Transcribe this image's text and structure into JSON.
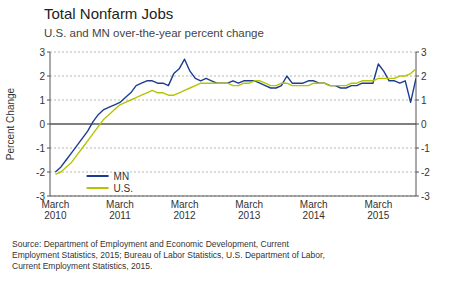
{
  "chart_data": {
    "type": "line",
    "title": "Total Nonfarm Jobs",
    "subtitle": "U.S. and MN over-the-year percent change",
    "y_label": "Percent Change",
    "source": "Source: Department of Employment and Economic Development, Current\nEmployment Statistics, 2015; Bureau of Labor Statistics, U.S. Department of Labor,\nCurrent Employment Statistics, 2015.",
    "categories": [
      "March\n2010",
      null,
      null,
      null,
      null,
      null,
      null,
      null,
      null,
      null,
      null,
      null,
      "March\n2011",
      null,
      null,
      null,
      null,
      null,
      null,
      null,
      null,
      null,
      null,
      null,
      "March\n2012",
      null,
      null,
      null,
      null,
      null,
      null,
      null,
      null,
      null,
      null,
      null,
      "March\n2013",
      null,
      null,
      null,
      null,
      null,
      null,
      null,
      null,
      null,
      null,
      null,
      "March\n2014",
      null,
      null,
      null,
      null,
      null,
      null,
      null,
      null,
      null,
      null,
      null,
      "March\n2015",
      null,
      null,
      null,
      null,
      null,
      null,
      null
    ],
    "series": [
      {
        "name": "MN",
        "color": "#1a3d8f",
        "values": [
          -2.0,
          -1.8,
          -1.5,
          -1.2,
          -0.9,
          -0.6,
          -0.3,
          0.1,
          0.4,
          0.6,
          0.7,
          0.8,
          0.9,
          1.1,
          1.3,
          1.6,
          1.7,
          1.8,
          1.8,
          1.7,
          1.7,
          1.6,
          2.1,
          2.3,
          2.7,
          2.2,
          1.9,
          1.8,
          1.9,
          1.8,
          1.7,
          1.7,
          1.7,
          1.8,
          1.7,
          1.8,
          1.8,
          1.8,
          1.7,
          1.6,
          1.5,
          1.5,
          1.6,
          2.0,
          1.7,
          1.7,
          1.7,
          1.8,
          1.8,
          1.7,
          1.7,
          1.6,
          1.6,
          1.5,
          1.5,
          1.6,
          1.6,
          1.7,
          1.7,
          1.7,
          2.5,
          2.2,
          1.8,
          1.8,
          1.7,
          1.8,
          0.9,
          1.9
        ]
      },
      {
        "name": "U.S.",
        "color": "#b5c400",
        "values": [
          -2.1,
          -2.0,
          -1.8,
          -1.6,
          -1.3,
          -1.0,
          -0.7,
          -0.4,
          -0.1,
          0.2,
          0.4,
          0.6,
          0.8,
          0.9,
          1.0,
          1.1,
          1.2,
          1.3,
          1.4,
          1.3,
          1.3,
          1.2,
          1.2,
          1.3,
          1.4,
          1.5,
          1.6,
          1.7,
          1.7,
          1.7,
          1.7,
          1.7,
          1.7,
          1.6,
          1.6,
          1.7,
          1.7,
          1.8,
          1.8,
          1.7,
          1.6,
          1.6,
          1.7,
          1.7,
          1.6,
          1.6,
          1.6,
          1.6,
          1.7,
          1.7,
          1.7,
          1.6,
          1.6,
          1.6,
          1.6,
          1.7,
          1.7,
          1.8,
          1.8,
          1.8,
          1.9,
          1.9,
          1.9,
          1.9,
          2.0,
          2.0,
          2.1,
          2.3
        ]
      }
    ],
    "ylim": [
      -3,
      3
    ],
    "yticks": [
      -3,
      -2,
      -1,
      0,
      1,
      2,
      3
    ],
    "y2lim": [
      -3,
      3
    ],
    "y2ticks": [
      -3,
      -2,
      -1,
      0,
      1,
      2,
      3
    ],
    "grid": true,
    "legend": "lower left"
  }
}
